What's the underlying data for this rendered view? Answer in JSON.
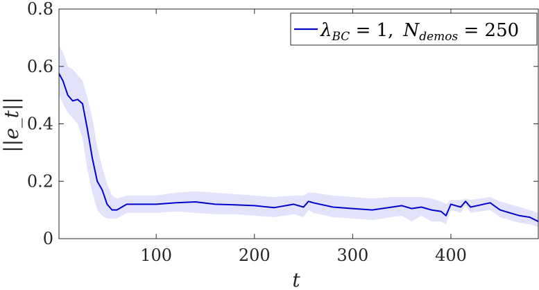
{
  "chart_data": {
    "type": "line",
    "xlabel": "t",
    "ylabel": "||e_t||",
    "xlim": [
      1,
      489
    ],
    "ylim": [
      0,
      0.8
    ],
    "xticks": [
      100,
      200,
      300,
      400
    ],
    "yticks": [
      0,
      0.2,
      0.4,
      0.6,
      0.8
    ],
    "xtick_labels": [
      "100",
      "200",
      "300",
      "400"
    ],
    "ytick_labels": [
      "0",
      "0.2",
      "0.4",
      "0.6",
      "0.8"
    ],
    "grid": false,
    "legend_placement": "top-right",
    "legend": {
      "lambda_symbol": "λ",
      "lambda_sub": "BC",
      "lambda_eq": " = 1,",
      "n_symbol": "N",
      "n_sub": "demos",
      "n_eq": " = 250"
    },
    "series": [
      {
        "color": "#0000cc",
        "band_color": "#e2e2fb",
        "x": [
          1,
          5,
          10,
          15,
          20,
          25,
          30,
          35,
          40,
          45,
          50,
          55,
          60,
          70,
          80,
          100,
          120,
          140,
          160,
          180,
          200,
          220,
          240,
          250,
          255,
          260,
          280,
          300,
          320,
          340,
          350,
          360,
          370,
          380,
          390,
          395,
          400,
          410,
          415,
          420,
          440,
          450,
          460,
          470,
          480,
          489
        ],
        "y": [
          0.575,
          0.55,
          0.5,
          0.48,
          0.485,
          0.47,
          0.38,
          0.28,
          0.2,
          0.17,
          0.12,
          0.1,
          0.1,
          0.12,
          0.12,
          0.12,
          0.125,
          0.128,
          0.12,
          0.118,
          0.115,
          0.108,
          0.12,
          0.11,
          0.13,
          0.125,
          0.11,
          0.105,
          0.1,
          0.11,
          0.115,
          0.105,
          0.11,
          0.1,
          0.095,
          0.08,
          0.12,
          0.11,
          0.13,
          0.11,
          0.125,
          0.1,
          0.09,
          0.08,
          0.075,
          0.06
        ],
        "upper": [
          0.675,
          0.65,
          0.6,
          0.59,
          0.57,
          0.55,
          0.49,
          0.42,
          0.32,
          0.25,
          0.19,
          0.15,
          0.14,
          0.15,
          0.15,
          0.15,
          0.16,
          0.165,
          0.16,
          0.155,
          0.15,
          0.145,
          0.15,
          0.15,
          0.16,
          0.16,
          0.15,
          0.145,
          0.14,
          0.145,
          0.145,
          0.145,
          0.145,
          0.14,
          0.13,
          0.12,
          0.135,
          0.135,
          0.14,
          0.135,
          0.145,
          0.13,
          0.12,
          0.11,
          0.1,
          0.09
        ],
        "lower": [
          0.5,
          0.47,
          0.44,
          0.42,
          0.4,
          0.35,
          0.24,
          0.16,
          0.1,
          0.08,
          0.07,
          0.07,
          0.07,
          0.09,
          0.09,
          0.09,
          0.095,
          0.09,
          0.085,
          0.085,
          0.08,
          0.075,
          0.085,
          0.075,
          0.1,
          0.09,
          0.075,
          0.07,
          0.065,
          0.075,
          0.08,
          0.06,
          0.08,
          0.06,
          0.06,
          0.05,
          0.1,
          0.09,
          0.115,
          0.09,
          0.1,
          0.075,
          0.065,
          0.055,
          0.05,
          0.04
        ]
      }
    ]
  }
}
